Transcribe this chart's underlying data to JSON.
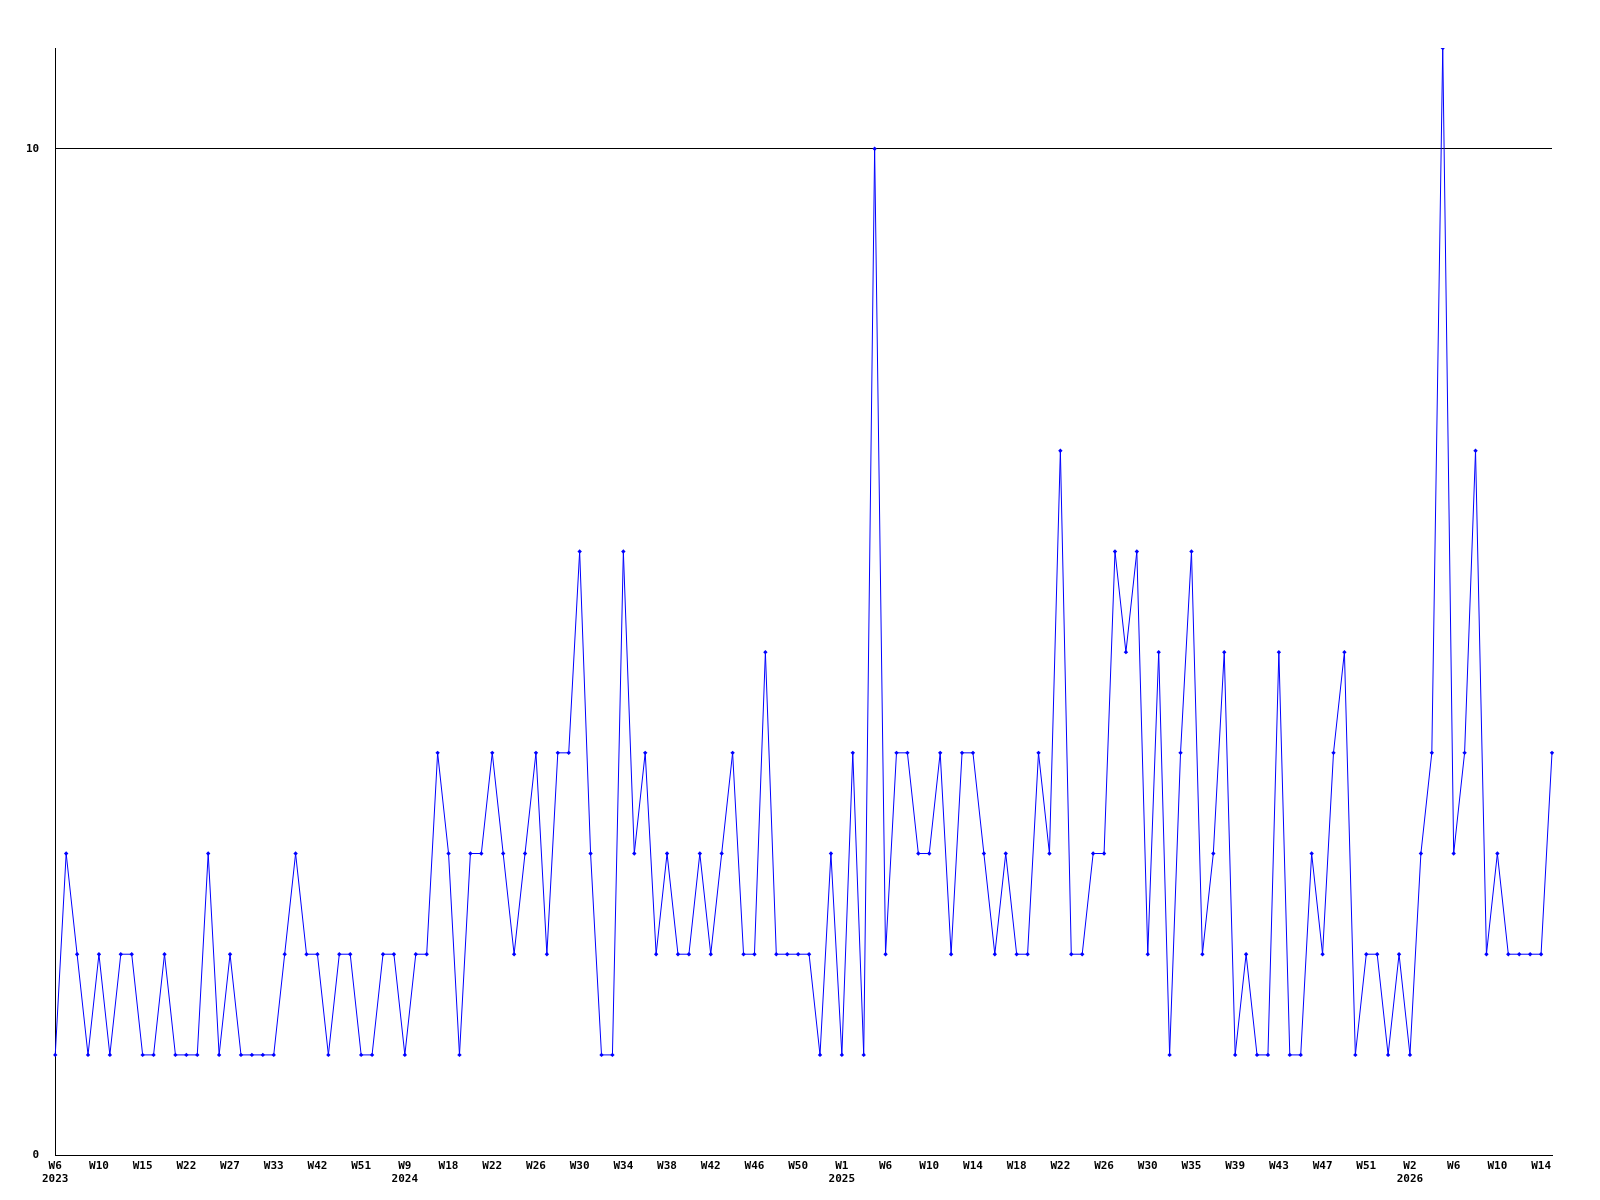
{
  "chart_data": {
    "type": "line",
    "categories": [
      "W6\n2023",
      null,
      null,
      null,
      "W10",
      null,
      null,
      null,
      "W15",
      null,
      null,
      null,
      "W22",
      null,
      null,
      null,
      "W27",
      null,
      null,
      null,
      "W33",
      null,
      null,
      null,
      "W42",
      null,
      null,
      null,
      "W51",
      null,
      null,
      null,
      "W9\n2024",
      null,
      null,
      null,
      "W18",
      null,
      null,
      null,
      "W22",
      null,
      null,
      null,
      "W26",
      null,
      null,
      null,
      "W30",
      null,
      null,
      null,
      "W34",
      null,
      null,
      null,
      "W38",
      null,
      null,
      null,
      "W42",
      null,
      null,
      null,
      "W46",
      null,
      null,
      null,
      "W50",
      null,
      null,
      null,
      "W1\n2025",
      null,
      null,
      null,
      "W6",
      null,
      null,
      null,
      "W10",
      null,
      null,
      null,
      "W14",
      null,
      null,
      null,
      "W18",
      null,
      null,
      null,
      "W22",
      null,
      null,
      null,
      "W26",
      null,
      null,
      null,
      "W30",
      null,
      null,
      null,
      "W35",
      null,
      null,
      null,
      "W39",
      null,
      null,
      null,
      "W43",
      null,
      null,
      null,
      "W47",
      null,
      null,
      null,
      "W51",
      null,
      null,
      null,
      "W2\n2026",
      null,
      null,
      null,
      "W6",
      null,
      null,
      null,
      "W10",
      null,
      null,
      null,
      "W14",
      null
    ],
    "series": [
      {
        "color": "#0000ff",
        "values": [
          1,
          3,
          2,
          1,
          2,
          1,
          2,
          2,
          1,
          1,
          2,
          1,
          1,
          1,
          3,
          1,
          2,
          1,
          1,
          1,
          1,
          2,
          3,
          2,
          2,
          1,
          2,
          2,
          1,
          1,
          2,
          2,
          1,
          2,
          2,
          4,
          3,
          1,
          3,
          3,
          4,
          3,
          2,
          3,
          4,
          2,
          4,
          4,
          6,
          3,
          1,
          1,
          6,
          3,
          4,
          2,
          3,
          2,
          2,
          3,
          2,
          3,
          4,
          2,
          2,
          5,
          2,
          2,
          2,
          2,
          1,
          3,
          1,
          4,
          1,
          10,
          2,
          4,
          4,
          3,
          3,
          4,
          2,
          4,
          4,
          3,
          2,
          3,
          2,
          2,
          4,
          3,
          7,
          2,
          2,
          3,
          3,
          6,
          5,
          6,
          2,
          5,
          1,
          4,
          6,
          2,
          3,
          5,
          1,
          2,
          1,
          1,
          5,
          1,
          1,
          3,
          2,
          4,
          5,
          1,
          2,
          2,
          1,
          2,
          1,
          3,
          4,
          11,
          3,
          4,
          7,
          2,
          3,
          2,
          2,
          2,
          2,
          4
        ]
      }
    ],
    "ylim": [
      0,
      11
    ],
    "yticks": [
      0,
      10
    ],
    "grid": "y",
    "legend": false,
    "marker": "diamond",
    "line_style": "solid"
  }
}
